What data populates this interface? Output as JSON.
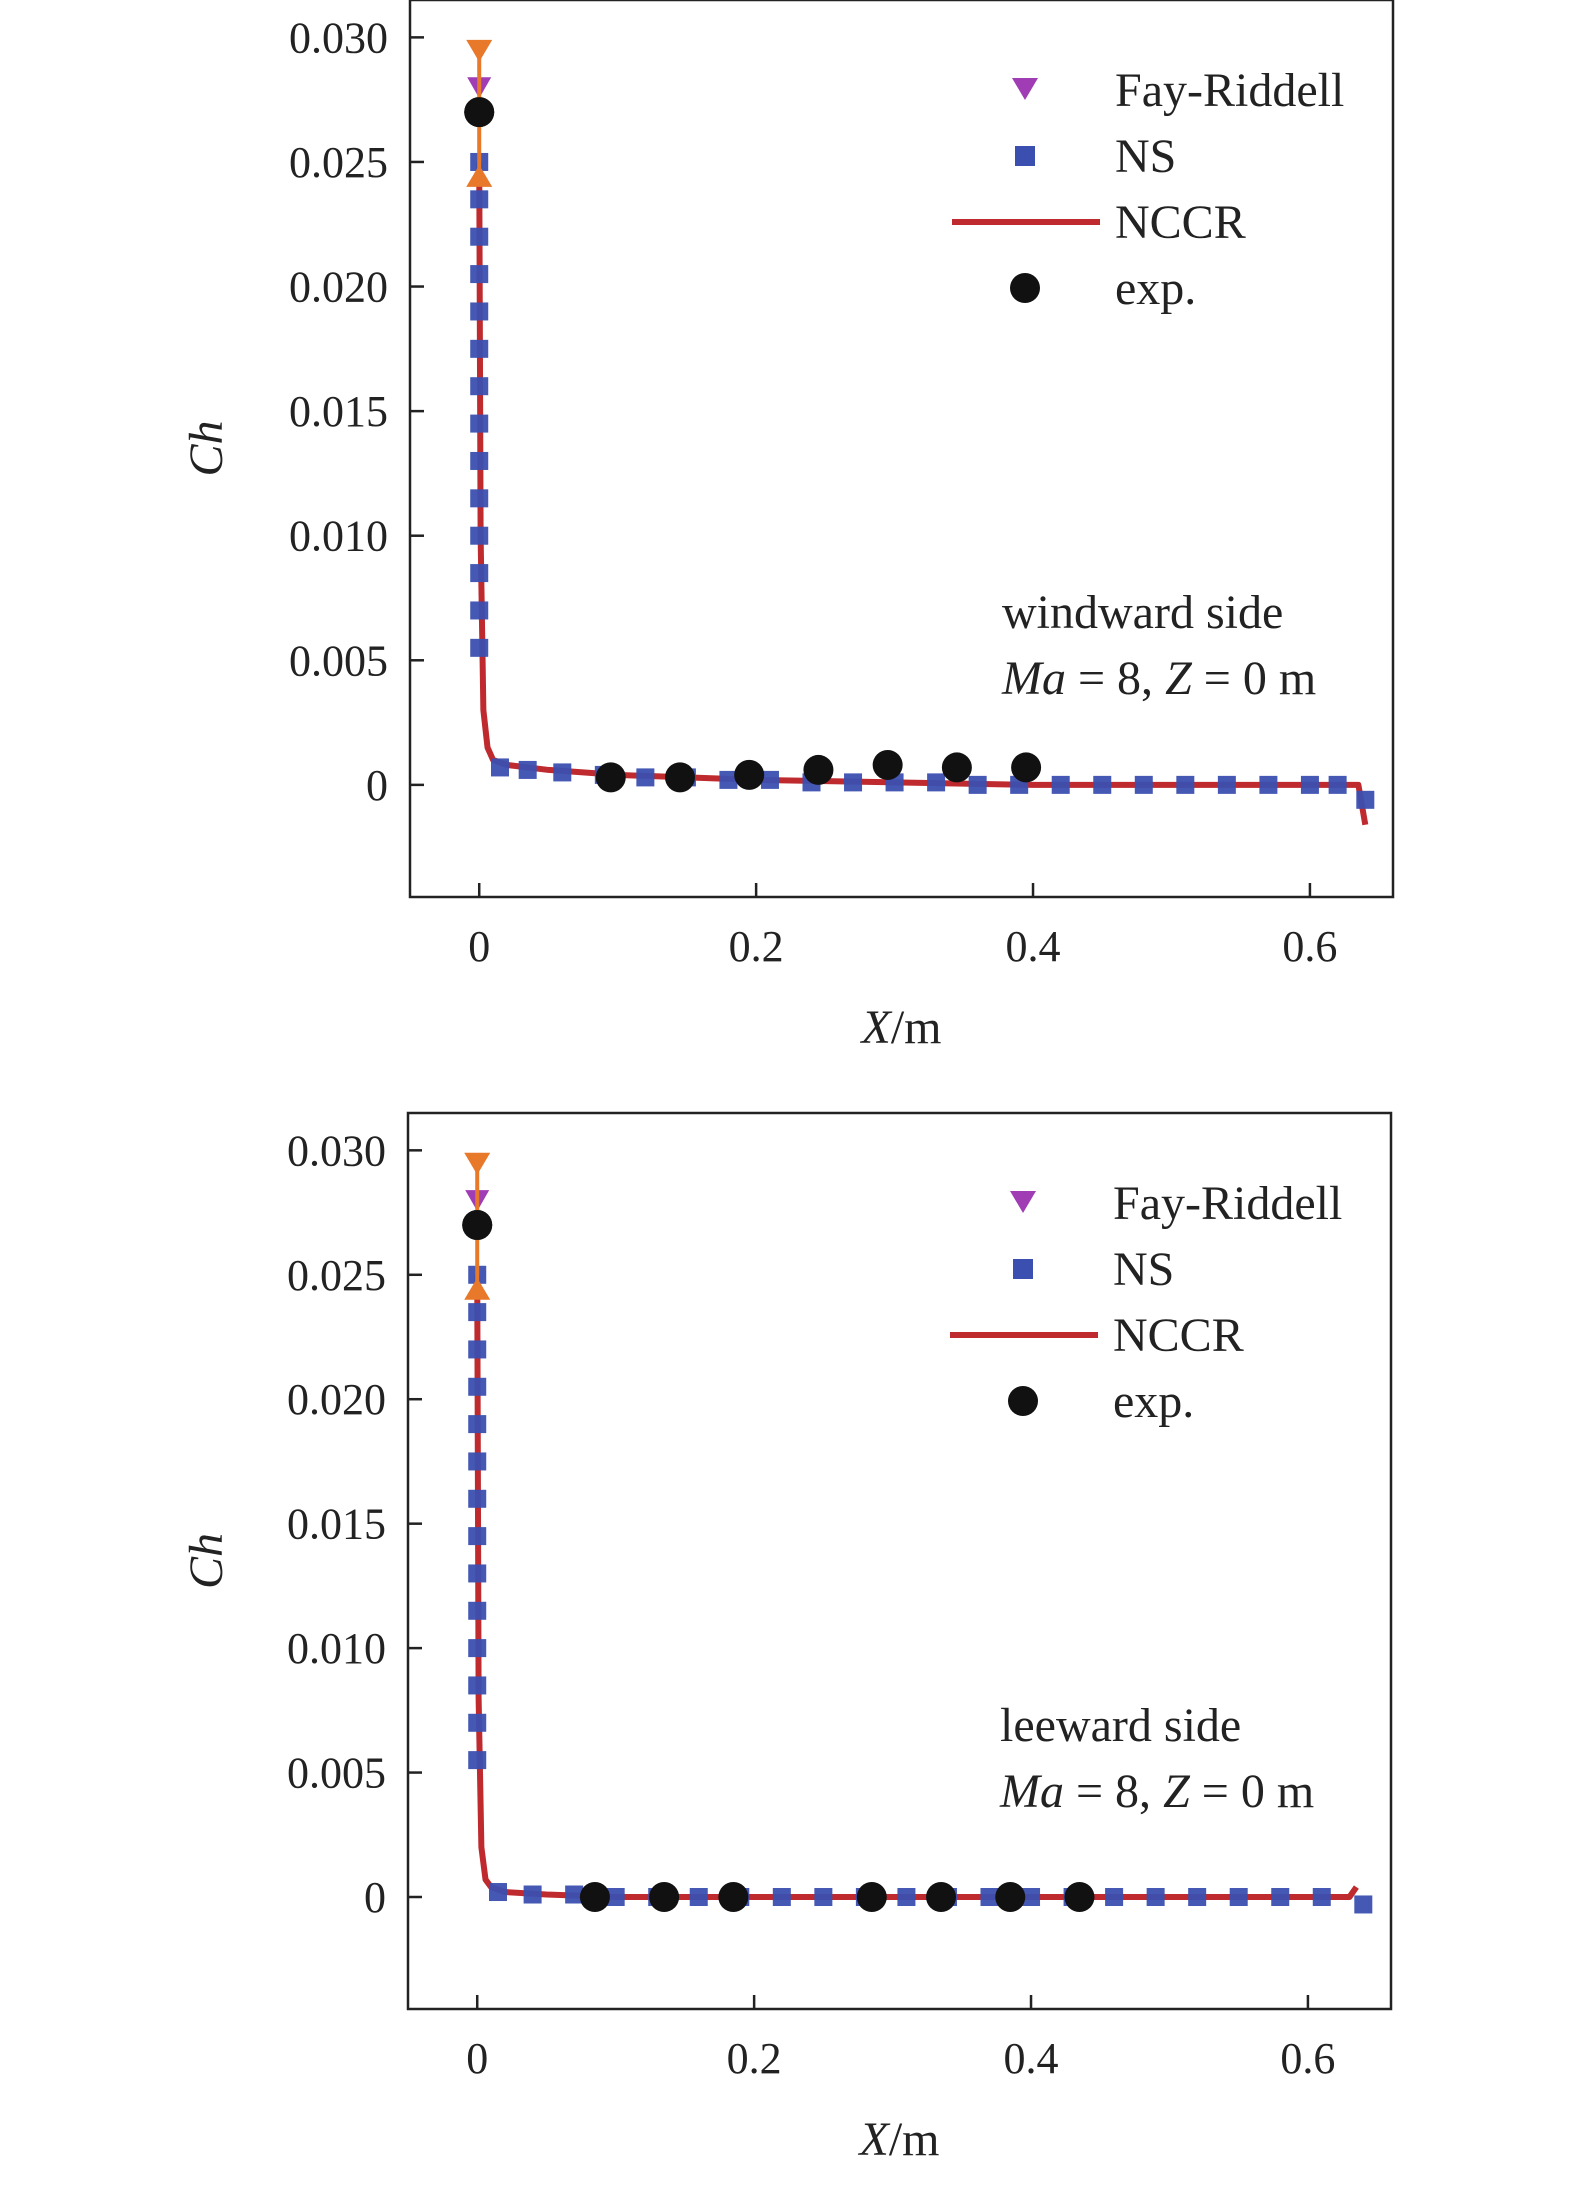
{
  "chart_data": [
    {
      "type": "line",
      "panel": "top",
      "xlabel": "X/m",
      "ylabel": "Ch",
      "xlim": [
        -0.05,
        0.66
      ],
      "ylim": [
        -0.0045,
        0.0315
      ],
      "xticks": [
        0,
        0.2,
        0.4,
        0.6
      ],
      "xtick_labels": [
        "0",
        "0.2",
        "0.4",
        "0.6"
      ],
      "yticks": [
        0,
        0.005,
        0.01,
        0.015,
        0.02,
        0.025,
        0.03
      ],
      "ytick_labels": [
        "0",
        "0.005",
        "0.010",
        "0.015",
        "0.020",
        "0.025",
        "0.030"
      ],
      "annotation": [
        "windward side",
        "Ma = 8, Z = 0 m"
      ],
      "legend_position": "top-right",
      "legend": [
        "Fay-Riddell",
        "NS",
        "NCCR",
        "exp."
      ],
      "colors": {
        "fay_riddell": "#a03cb4",
        "ns": "#3a4fb0",
        "nccr": "#bf2a2e",
        "exp": "#111111",
        "errorbar": "#e8782a"
      },
      "series": [
        {
          "name": "Fay-Riddell",
          "marker": "triangle-down",
          "x": [
            0
          ],
          "y": [
            0.028
          ]
        },
        {
          "name": "NS",
          "marker": "square",
          "x": [
            0,
            0,
            0,
            0,
            0,
            0,
            0,
            0,
            0,
            0,
            0,
            0,
            0,
            0,
            0.015,
            0.035,
            0.06,
            0.09,
            0.12,
            0.15,
            0.18,
            0.21,
            0.24,
            0.27,
            0.3,
            0.33,
            0.36,
            0.39,
            0.42,
            0.45,
            0.48,
            0.51,
            0.54,
            0.57,
            0.6,
            0.62,
            0.64
          ],
          "y": [
            0.025,
            0.0235,
            0.022,
            0.0205,
            0.019,
            0.0175,
            0.016,
            0.0145,
            0.013,
            0.0115,
            0.01,
            0.0085,
            0.007,
            0.0055,
            0.0007,
            0.0006,
            0.0005,
            0.0004,
            0.0003,
            0.0003,
            0.0002,
            0.0002,
            0.0001,
            0.0001,
            0.0001,
            0.0001,
            0.0,
            0.0,
            0.0,
            0.0,
            0.0,
            0.0,
            0.0,
            0.0,
            0.0,
            0.0,
            -0.0006
          ]
        },
        {
          "name": "NCCR",
          "x": [
            0,
            0.001,
            0.003,
            0.006,
            0.01,
            0.02,
            0.05,
            0.1,
            0.2,
            0.3,
            0.4,
            0.5,
            0.6,
            0.635,
            0.64
          ],
          "y": [
            0.025,
            0.01,
            0.003,
            0.0015,
            0.001,
            0.0008,
            0.0006,
            0.0004,
            0.0002,
            0.0001,
            0.0,
            0.0,
            0.0,
            0.0,
            -0.0016
          ]
        },
        {
          "name": "exp.",
          "marker": "circle",
          "x": [
            0,
            0.095,
            0.145,
            0.195,
            0.245,
            0.295,
            0.345,
            0.395
          ],
          "y": [
            0.027,
            0.0003,
            0.0003,
            0.0004,
            0.0006,
            0.0008,
            0.0007,
            0.0007
          ]
        }
      ],
      "errorbar": {
        "x": 0,
        "y": 0.027,
        "upper": 0.0295,
        "lower": 0.0244
      }
    },
    {
      "type": "line",
      "panel": "bottom",
      "xlabel": "X/m",
      "ylabel": "Ch",
      "xlim": [
        -0.05,
        0.66
      ],
      "ylim": [
        -0.0045,
        0.0315
      ],
      "xticks": [
        0,
        0.2,
        0.4,
        0.6
      ],
      "xtick_labels": [
        "0",
        "0.2",
        "0.4",
        "0.6"
      ],
      "yticks": [
        0,
        0.005,
        0.01,
        0.015,
        0.02,
        0.025,
        0.03
      ],
      "ytick_labels": [
        "0",
        "0.005",
        "0.010",
        "0.015",
        "0.020",
        "0.025",
        "0.030"
      ],
      "annotation": [
        "leeward side",
        "Ma = 8, Z = 0 m"
      ],
      "legend_position": "top-right",
      "legend": [
        "Fay-Riddell",
        "NS",
        "NCCR",
        "exp."
      ],
      "colors": {
        "fay_riddell": "#a03cb4",
        "ns": "#3a4fb0",
        "nccr": "#bf2a2e",
        "exp": "#111111",
        "errorbar": "#e8782a"
      },
      "series": [
        {
          "name": "Fay-Riddell",
          "marker": "triangle-down",
          "x": [
            0
          ],
          "y": [
            0.028
          ]
        },
        {
          "name": "NS",
          "marker": "square",
          "x": [
            0,
            0,
            0,
            0,
            0,
            0,
            0,
            0,
            0,
            0,
            0,
            0,
            0,
            0,
            0.015,
            0.04,
            0.07,
            0.1,
            0.13,
            0.16,
            0.19,
            0.22,
            0.25,
            0.28,
            0.31,
            0.34,
            0.37,
            0.4,
            0.43,
            0.46,
            0.49,
            0.52,
            0.55,
            0.58,
            0.61,
            0.64
          ],
          "y": [
            0.025,
            0.0235,
            0.022,
            0.0205,
            0.019,
            0.0175,
            0.016,
            0.0145,
            0.013,
            0.0115,
            0.01,
            0.0085,
            0.007,
            0.0055,
            0.0002,
            0.0001,
            0.0001,
            0.0,
            0.0,
            0.0,
            0.0,
            0.0,
            0.0,
            0.0,
            0.0,
            0.0,
            0.0,
            0.0,
            0.0,
            0.0,
            0.0,
            0.0,
            0.0,
            0.0,
            0.0,
            -0.0003
          ]
        },
        {
          "name": "NCCR",
          "x": [
            0,
            0.001,
            0.003,
            0.006,
            0.01,
            0.02,
            0.05,
            0.1,
            0.2,
            0.3,
            0.4,
            0.5,
            0.6,
            0.63,
            0.635
          ],
          "y": [
            0.025,
            0.008,
            0.002,
            0.0007,
            0.0004,
            0.0002,
            0.0001,
            0.0,
            0.0,
            0.0,
            0.0,
            0.0,
            0.0,
            0.0,
            0.0004
          ]
        },
        {
          "name": "exp.",
          "marker": "circle",
          "x": [
            0,
            0.085,
            0.135,
            0.185,
            0.285,
            0.335,
            0.385,
            0.435
          ],
          "y": [
            0.027,
            0.0,
            0.0,
            0.0,
            0.0,
            0.0,
            0.0,
            0.0
          ]
        }
      ],
      "errorbar": {
        "x": 0,
        "y": 0.027,
        "upper": 0.0295,
        "lower": 0.0244
      }
    }
  ]
}
